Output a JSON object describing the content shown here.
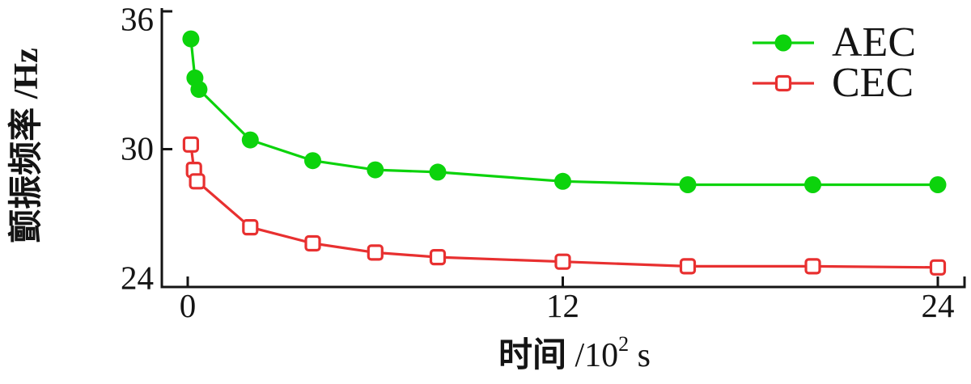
{
  "chart_data": {
    "type": "line",
    "title": "",
    "xlabel": {
      "cn": "时间",
      "unit_prefix": " /10",
      "unit_sup": "2",
      "unit_suffix": " s",
      "full": "时间 /10² s"
    },
    "ylabel": {
      "full": "颤振频率 /Hz"
    },
    "x_ticks": [
      {
        "value": 0,
        "label": "0"
      },
      {
        "value": 12,
        "label": "12"
      },
      {
        "value": 24,
        "label": "24"
      }
    ],
    "y_ticks": [
      {
        "value": 36,
        "label": "36"
      },
      {
        "value": 30,
        "label": "30"
      },
      {
        "value": 24,
        "label": "24"
      }
    ],
    "xlim": [
      0,
      24.9
    ],
    "ylim": [
      24,
      36
    ],
    "grid": false,
    "legend_position": "top-right",
    "axis_color": "#141414",
    "series": [
      {
        "name": "AEC",
        "color": "#0cd30c",
        "marker": "filled-circle",
        "points": [
          [
            0.1,
            34.8
          ],
          [
            0.23,
            33.1
          ],
          [
            0.36,
            32.6
          ],
          [
            2,
            30.4
          ],
          [
            4,
            29.5
          ],
          [
            6,
            29.1
          ],
          [
            8,
            29.0
          ],
          [
            12,
            28.6
          ],
          [
            16,
            28.45
          ],
          [
            20,
            28.45
          ],
          [
            24,
            28.45
          ]
        ]
      },
      {
        "name": "CEC",
        "color": "#e83030",
        "marker": "open-square",
        "points": [
          [
            0.1,
            30.2
          ],
          [
            0.2,
            29.1
          ],
          [
            0.3,
            28.6
          ],
          [
            2,
            26.6
          ],
          [
            4,
            25.9
          ],
          [
            6,
            25.5
          ],
          [
            8,
            25.3
          ],
          [
            12,
            25.1
          ],
          [
            16,
            24.9
          ],
          [
            20,
            24.9
          ],
          [
            24,
            24.85
          ]
        ]
      }
    ]
  }
}
